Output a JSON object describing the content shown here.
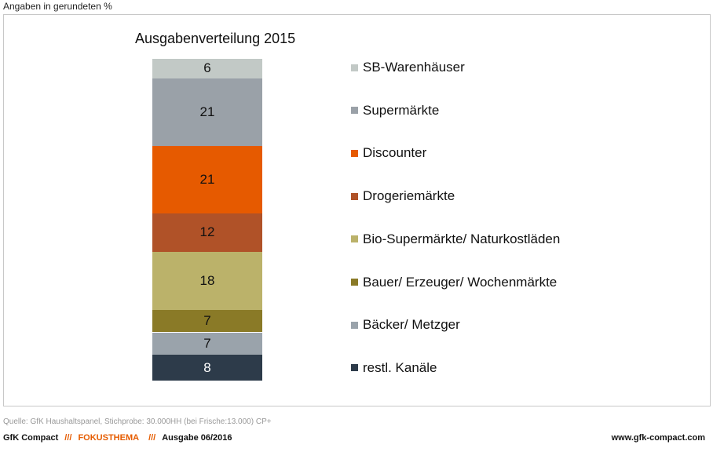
{
  "header": {
    "unit": "Angaben in gerundeten  %"
  },
  "chart_data": {
    "type": "bar",
    "stacked": true,
    "title": "Ausgabenverteilung 2015",
    "categories": [
      "2015"
    ],
    "series": [
      {
        "name": "SB-Warenhäuser",
        "values": [
          6
        ],
        "color": "#c2c9c6",
        "label_color": "#111"
      },
      {
        "name": "Supermärkte",
        "values": [
          21
        ],
        "color": "#9aa1a8",
        "label_color": "#111"
      },
      {
        "name": "Discounter",
        "values": [
          21
        ],
        "color": "#e65a00",
        "label_color": "#111"
      },
      {
        "name": "Drogeriemärkte",
        "values": [
          12
        ],
        "color": "#b05228",
        "label_color": "#111"
      },
      {
        "name": "Bio-Supermärkte/ Naturkostläden",
        "values": [
          18
        ],
        "color": "#bbb26a",
        "label_color": "#111"
      },
      {
        "name": "Bauer/ Erzeuger/ Wochenmärkte",
        "values": [
          7
        ],
        "color": "#8a7a27",
        "label_color": "#111"
      },
      {
        "name": "Bäcker/ Metzger",
        "values": [
          7
        ],
        "color": "#9aa3ab",
        "label_color": "#111"
      },
      {
        "name": "restl. Kanäle",
        "values": [
          8
        ],
        "color": "#2d3b4a",
        "label_color": "#fff"
      }
    ],
    "ylim": [
      0,
      100
    ],
    "legend": "right"
  },
  "footer": {
    "source": "Quelle: GfK Haushaltspanel, Stichprobe: 30.000HH (bei Frische:13.000) CP+",
    "brand": "GfK Compact",
    "sep1": "///",
    "topic": "FOKUSTHEMA",
    "sep2": "///",
    "issue": "Ausgabe 06/2016",
    "url": "www.gfk-compact.com"
  }
}
